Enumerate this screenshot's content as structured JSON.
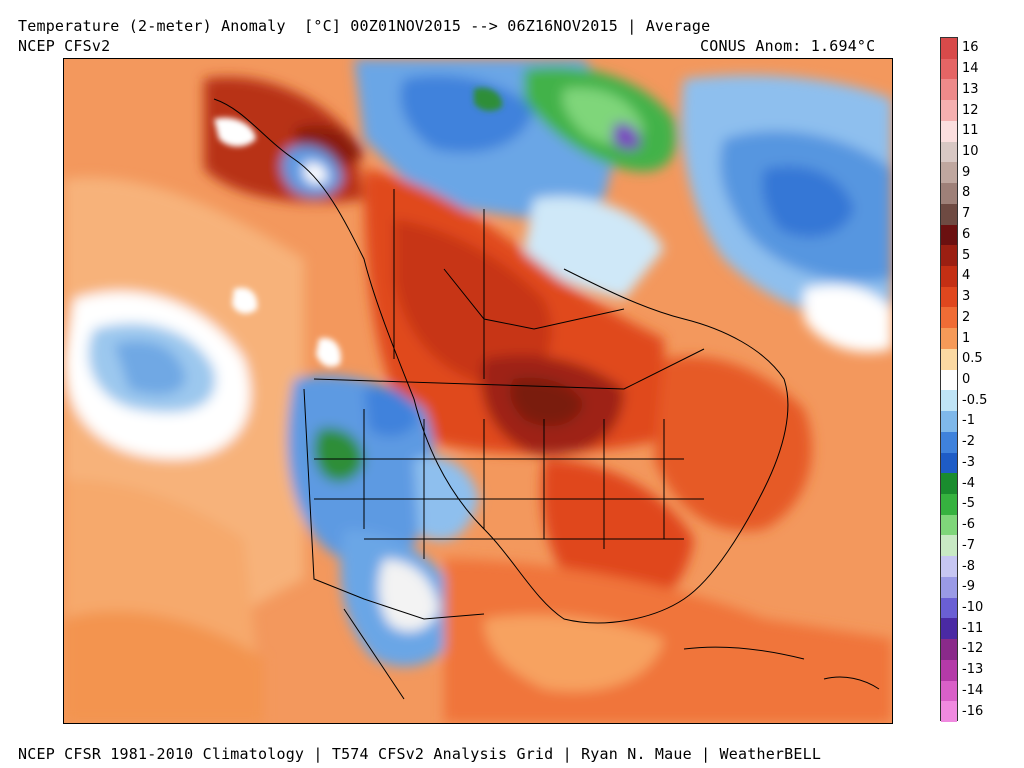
{
  "header": {
    "title": "Temperature (2-meter) Anomaly  [°C] 00Z01NOV2015 --> 06Z16NOV2015 | Average",
    "model": "NCEP CFSv2",
    "conus_anomaly": "CONUS Anom: 1.694°C"
  },
  "footer": {
    "credits": "NCEP CFSR 1981-2010 Climatology | T574 CFSv2 Analysis Grid | Ryan N. Maue | WeatherBELL"
  },
  "map": {
    "region": "North America",
    "variable": "2-meter temperature anomaly",
    "units": "°C"
  },
  "legend": {
    "levels": [
      {
        "label": "16",
        "color": "#d84a4a"
      },
      {
        "label": "14",
        "color": "#e56565"
      },
      {
        "label": "13",
        "color": "#ee8a8a"
      },
      {
        "label": "12",
        "color": "#f5b0b0"
      },
      {
        "label": "11",
        "color": "#fbdede"
      },
      {
        "label": "10",
        "color": "#d8c8c4"
      },
      {
        "label": "9",
        "color": "#bfa79f"
      },
      {
        "label": "8",
        "color": "#9e8078"
      },
      {
        "label": "7",
        "color": "#6e4a42"
      },
      {
        "label": "6",
        "color": "#6b1010"
      },
      {
        "label": "5",
        "color": "#9b1f12"
      },
      {
        "label": "4",
        "color": "#c42f14"
      },
      {
        "label": "3",
        "color": "#e0471e"
      },
      {
        "label": "2",
        "color": "#f06c35"
      },
      {
        "label": "1",
        "color": "#f69a58"
      },
      {
        "label": "0.5",
        "color": "#fbd9a2"
      },
      {
        "label": "0",
        "color": "#ffffff"
      },
      {
        "label": "-0.5",
        "color": "#bfe4f6"
      },
      {
        "label": "-1",
        "color": "#7fb8ea"
      },
      {
        "label": "-2",
        "color": "#3f82dc"
      },
      {
        "label": "-3",
        "color": "#1e5cc6"
      },
      {
        "label": "-4",
        "color": "#1a8c2e"
      },
      {
        "label": "-5",
        "color": "#36b23f"
      },
      {
        "label": "-6",
        "color": "#7fd67a"
      },
      {
        "label": "-7",
        "color": "#c8e9c4"
      },
      {
        "label": "-8",
        "color": "#c6c6f2"
      },
      {
        "label": "-9",
        "color": "#9a9ae6"
      },
      {
        "label": "-10",
        "color": "#6a5fd4"
      },
      {
        "label": "-11",
        "color": "#4a2aa4"
      },
      {
        "label": "-12",
        "color": "#8a2a8a"
      },
      {
        "label": "-13",
        "color": "#b43aa8"
      },
      {
        "label": "-14",
        "color": "#d960c8"
      },
      {
        "label": "-16",
        "color": "#f08ae0"
      }
    ]
  }
}
